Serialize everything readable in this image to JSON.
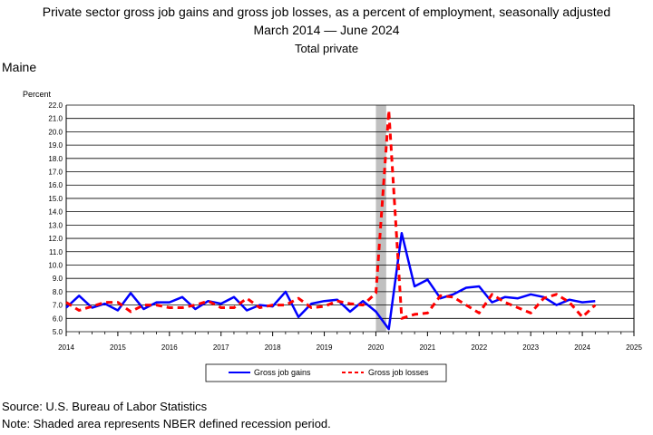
{
  "chart_data": {
    "type": "line",
    "title": "Private sector gross job gains and gross job losses, as a percent of employment, seasonally adjusted",
    "title_line2_start": "March 2014",
    "title_line2_end": "June 2024",
    "subtitle": "Total private",
    "region": "Maine",
    "ylabel": "Percent",
    "xlabel": "",
    "ylim": [
      5.0,
      22.0
    ],
    "y_ticks": [
      "5.0",
      "6.0",
      "7.0",
      "8.0",
      "9.0",
      "10.0",
      "11.0",
      "12.0",
      "13.0",
      "14.0",
      "15.0",
      "16.0",
      "17.0",
      "18.0",
      "19.0",
      "20.0",
      "21.0",
      "22.0"
    ],
    "xlim": [
      2014,
      2025
    ],
    "x_ticks": [
      "2014",
      "2015",
      "2016",
      "2017",
      "2018",
      "2019",
      "2020",
      "2021",
      "2022",
      "2023",
      "2024",
      "2025"
    ],
    "grid": "horizontal",
    "legend_position": "bottom",
    "recession_shading": {
      "start": 2020.0,
      "end": 2020.2,
      "color": "#c0c0c0"
    },
    "series": [
      {
        "name": "Gross job gains",
        "color": "#0000ff",
        "style": "solid",
        "x": [
          2014.0,
          2014.25,
          2014.5,
          2014.75,
          2015.0,
          2015.25,
          2015.5,
          2015.75,
          2016.0,
          2016.25,
          2016.5,
          2016.75,
          2017.0,
          2017.25,
          2017.5,
          2017.75,
          2018.0,
          2018.25,
          2018.5,
          2018.75,
          2019.0,
          2019.25,
          2019.5,
          2019.75,
          2020.0,
          2020.25,
          2020.5,
          2020.75,
          2021.0,
          2021.25,
          2021.5,
          2021.75,
          2022.0,
          2022.25,
          2022.5,
          2022.75,
          2023.0,
          2023.25,
          2023.5,
          2023.75,
          2024.0,
          2024.25
        ],
        "values": [
          6.8,
          7.7,
          6.8,
          7.1,
          6.6,
          7.9,
          6.7,
          7.2,
          7.2,
          7.6,
          6.7,
          7.3,
          7.1,
          7.6,
          6.6,
          7.0,
          6.9,
          8.0,
          6.1,
          7.1,
          7.3,
          7.4,
          6.5,
          7.3,
          6.5,
          5.2,
          12.4,
          8.4,
          8.9,
          7.5,
          7.8,
          8.3,
          8.4,
          7.2,
          7.6,
          7.5,
          7.8,
          7.6,
          7.0,
          7.4,
          7.2,
          7.3
        ]
      },
      {
        "name": "Gross job losses",
        "color": "#ff0000",
        "style": "dashed",
        "x": [
          2014.0,
          2014.25,
          2014.5,
          2014.75,
          2015.0,
          2015.25,
          2015.5,
          2015.75,
          2016.0,
          2016.25,
          2016.5,
          2016.75,
          2017.0,
          2017.25,
          2017.5,
          2017.75,
          2018.0,
          2018.25,
          2018.5,
          2018.75,
          2019.0,
          2019.25,
          2019.5,
          2019.75,
          2020.0,
          2020.25,
          2020.5,
          2020.75,
          2021.0,
          2021.25,
          2021.5,
          2021.75,
          2022.0,
          2022.25,
          2022.5,
          2022.75,
          2023.0,
          2023.25,
          2023.5,
          2023.75,
          2024.0,
          2024.25
        ],
        "values": [
          7.2,
          6.6,
          6.9,
          7.2,
          7.2,
          6.5,
          7.0,
          7.0,
          6.8,
          6.8,
          7.0,
          7.3,
          6.8,
          6.8,
          7.5,
          6.8,
          7.0,
          7.0,
          7.5,
          6.8,
          6.9,
          7.3,
          7.1,
          7.0,
          7.9,
          21.6,
          6.0,
          6.3,
          6.4,
          7.7,
          7.6,
          7.0,
          6.4,
          7.8,
          7.2,
          6.8,
          6.4,
          7.5,
          7.8,
          7.2,
          6.1,
          7.0
        ]
      }
    ]
  },
  "footer": {
    "source": "Source: U.S. Bureau of Labor Statistics",
    "note": "Note: Shaded area represents NBER defined recession period."
  }
}
